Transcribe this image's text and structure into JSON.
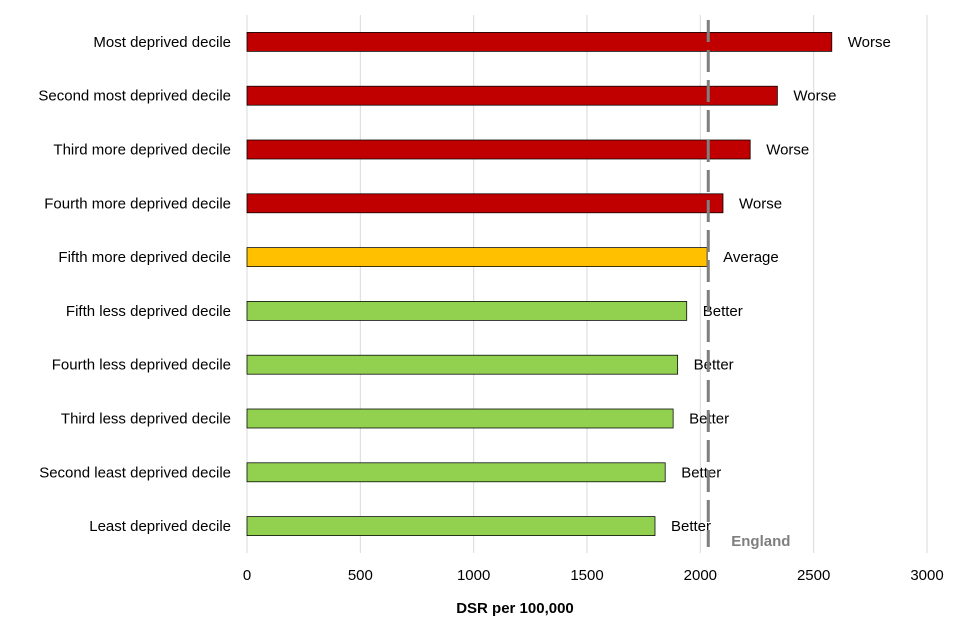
{
  "chart_data": {
    "type": "bar",
    "orientation": "horizontal",
    "title": "",
    "xlabel": "DSR per 100,000",
    "ylabel": "",
    "xlim": [
      0,
      3000
    ],
    "xticks": [
      0,
      500,
      1000,
      1500,
      2000,
      2500,
      3000
    ],
    "grid": true,
    "categories": [
      "Most deprived decile",
      "Second most deprived decile",
      "Third more deprived decile",
      "Fourth more deprived decile",
      "Fifth more deprived decile",
      "Fifth less deprived decile",
      "Fourth less deprived decile",
      "Third less deprived decile",
      "Second least deprived decile",
      "Least deprived decile"
    ],
    "values": [
      2580,
      2340,
      2220,
      2100,
      2030,
      1940,
      1900,
      1880,
      1845,
      1800
    ],
    "labels": [
      "Worse",
      "Worse",
      "Worse",
      "Worse",
      "Average",
      "Better",
      "Better",
      "Better",
      "Better",
      "Better"
    ],
    "colors": {
      "Worse": "#c00000",
      "Average": "#ffc000",
      "Better": "#92d050"
    },
    "reference_line": {
      "label": "England",
      "value": 2035,
      "color": "#7f7f7f"
    }
  }
}
